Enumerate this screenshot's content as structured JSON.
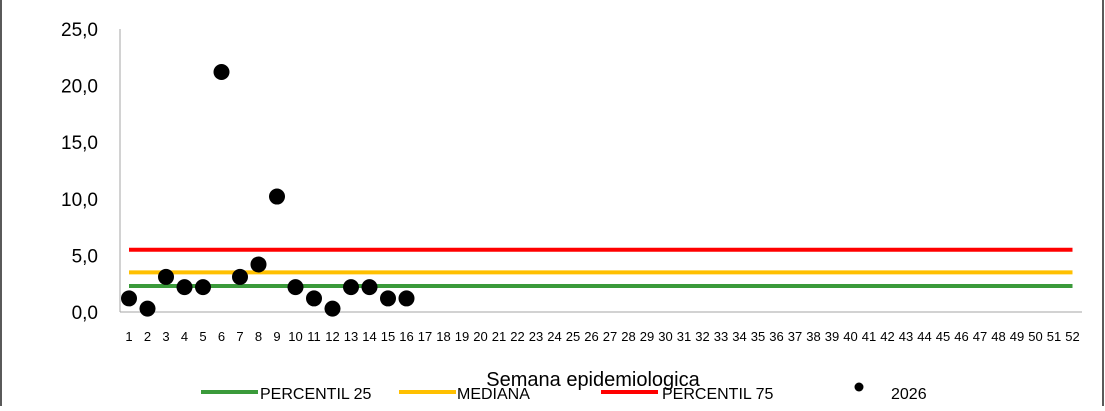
{
  "chart_data": {
    "type": "line",
    "title": "",
    "xlabel": "Semana epidemiologica",
    "ylabel": "",
    "ylim": [
      0,
      25
    ],
    "yticks": [
      "0,0",
      "5,0",
      "10,0",
      "15,0",
      "20,0",
      "25,0"
    ],
    "ytick_values": [
      0,
      5,
      10,
      15,
      20,
      25
    ],
    "categories": [
      "1",
      "2",
      "3",
      "4",
      "5",
      "6",
      "7",
      "8",
      "9",
      "10",
      "11",
      "12",
      "13",
      "14",
      "15",
      "16",
      "17",
      "18",
      "19",
      "20",
      "21",
      "22",
      "23",
      "24",
      "25",
      "26",
      "27",
      "28",
      "29",
      "30",
      "31",
      "32",
      "33",
      "34",
      "35",
      "36",
      "37",
      "38",
      "39",
      "40",
      "41",
      "42",
      "43",
      "44",
      "45",
      "46",
      "47",
      "48",
      "49",
      "50",
      "51",
      "52"
    ],
    "grid": false,
    "legend_position": "bottom",
    "series": [
      {
        "name": "PERCENTIL 25",
        "kind": "line",
        "color": "#3a9a3a",
        "values": [
          2.3,
          2.3,
          2.3,
          2.3,
          2.3,
          2.3,
          2.3,
          2.3,
          2.3,
          2.3,
          2.3,
          2.3,
          2.3,
          2.3,
          2.3,
          2.3,
          2.3,
          2.3,
          2.3,
          2.3,
          2.3,
          2.3,
          2.3,
          2.3,
          2.3,
          2.3,
          2.3,
          2.3,
          2.3,
          2.3,
          2.3,
          2.3,
          2.3,
          2.3,
          2.3,
          2.3,
          2.3,
          2.3,
          2.3,
          2.3,
          2.3,
          2.3,
          2.3,
          2.3,
          2.3,
          2.3,
          2.3,
          2.3,
          2.3,
          2.3,
          2.3,
          2.3
        ]
      },
      {
        "name": "MEDIANA",
        "kind": "line",
        "color": "#ffc000",
        "values": [
          3.5,
          3.5,
          3.5,
          3.5,
          3.5,
          3.5,
          3.5,
          3.5,
          3.5,
          3.5,
          3.5,
          3.5,
          3.5,
          3.5,
          3.5,
          3.5,
          3.5,
          3.5,
          3.5,
          3.5,
          3.5,
          3.5,
          3.5,
          3.5,
          3.5,
          3.5,
          3.5,
          3.5,
          3.5,
          3.5,
          3.5,
          3.5,
          3.5,
          3.5,
          3.5,
          3.5,
          3.5,
          3.5,
          3.5,
          3.5,
          3.5,
          3.5,
          3.5,
          3.5,
          3.5,
          3.5,
          3.5,
          3.5,
          3.5,
          3.5,
          3.5,
          3.5
        ]
      },
      {
        "name": "PERCENTIL 75",
        "kind": "line",
        "color": "#ff0000",
        "values": [
          5.5,
          5.5,
          5.5,
          5.5,
          5.5,
          5.5,
          5.5,
          5.5,
          5.5,
          5.5,
          5.5,
          5.5,
          5.5,
          5.5,
          5.5,
          5.5,
          5.5,
          5.5,
          5.5,
          5.5,
          5.5,
          5.5,
          5.5,
          5.5,
          5.5,
          5.5,
          5.5,
          5.5,
          5.5,
          5.5,
          5.5,
          5.5,
          5.5,
          5.5,
          5.5,
          5.5,
          5.5,
          5.5,
          5.5,
          5.5,
          5.5,
          5.5,
          5.5,
          5.5,
          5.5,
          5.5,
          5.5,
          5.5,
          5.5,
          5.5,
          5.5,
          5.5
        ]
      },
      {
        "name": "2026",
        "kind": "scatter",
        "color": "#000000",
        "values": [
          1.2,
          0.3,
          3.1,
          2.2,
          2.2,
          21.2,
          3.1,
          4.2,
          10.2,
          2.2,
          1.2,
          0.3,
          2.2,
          2.2,
          1.2,
          1.2
        ]
      }
    ]
  }
}
